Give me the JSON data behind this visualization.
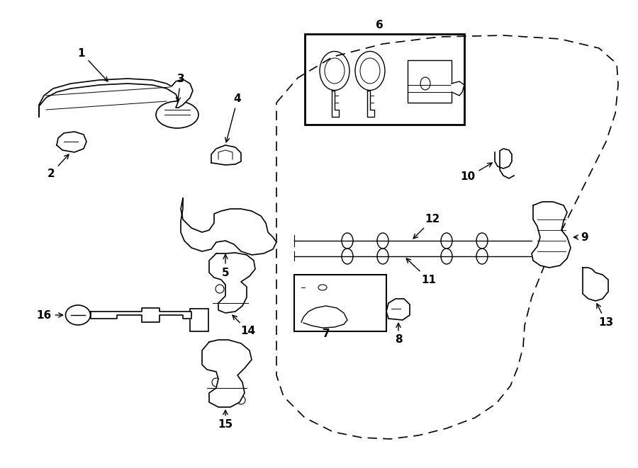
{
  "bg_color": "#ffffff",
  "lc": "#000000",
  "lw": 1.2,
  "figsize": [
    9.0,
    6.61
  ],
  "dpi": 100,
  "xlim": [
    0,
    900
  ],
  "ylim": [
    0,
    661
  ]
}
